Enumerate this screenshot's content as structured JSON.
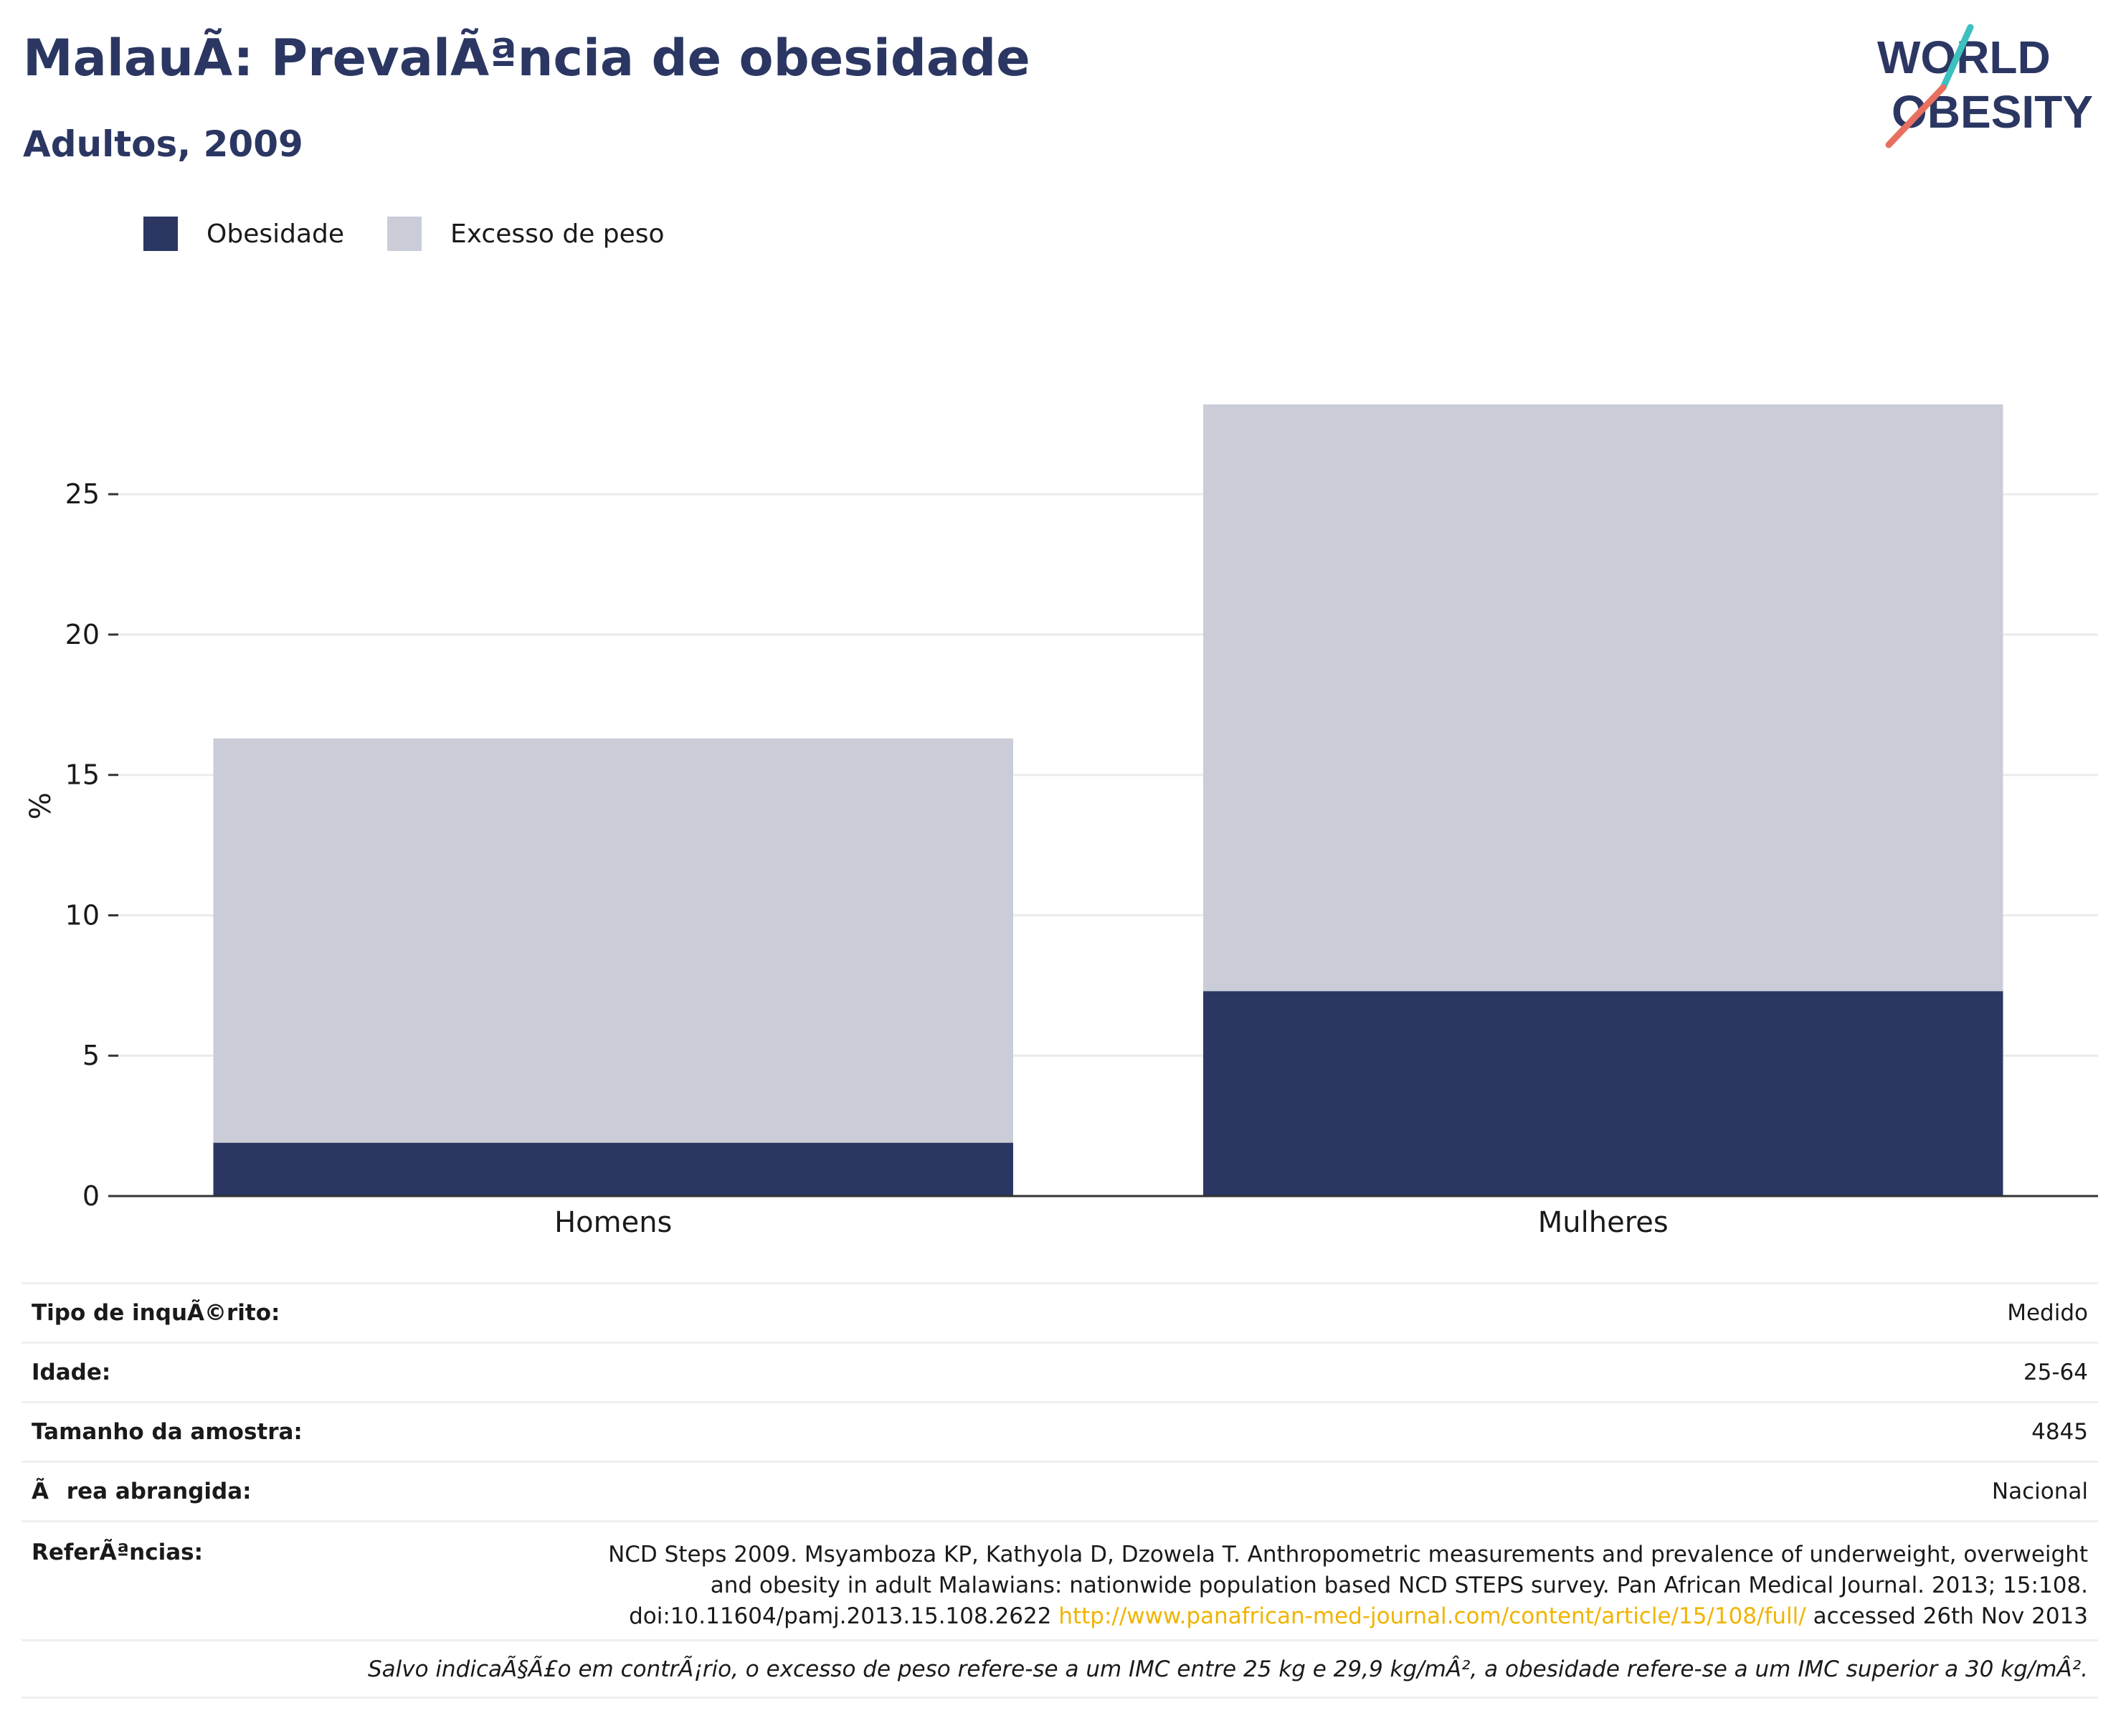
{
  "header": {
    "title": "MalauÃ: PrevalÃªncia de obesidade",
    "subtitle": "Adultos, 2009"
  },
  "logo": {
    "line1": "WORLD",
    "line2": "OBESITY",
    "text_color": "#2b3762",
    "slash_color_top": "#3cc0c0",
    "slash_color_bottom": "#e8705f"
  },
  "colors": {
    "obesity": "#2b3762",
    "overweight": "#cacdd8",
    "grid": "#ebebeb",
    "axis": "#333333",
    "link": "#f0b400"
  },
  "chart_data": {
    "type": "bar",
    "stacked": true,
    "categories": [
      "Homens",
      "Mulheres"
    ],
    "series": [
      {
        "name": "Obesidade",
        "values": [
          1.9,
          7.3
        ]
      },
      {
        "name": "Excesso de peso",
        "values": [
          14.4,
          20.9
        ]
      }
    ],
    "title": "MalauÃ: PrevalÃªncia de obesidade",
    "subtitle": "Adultos, 2009",
    "xlabel": "",
    "ylabel": "%",
    "ylim": [
      0,
      28.3
    ],
    "yticks": [
      0,
      5,
      10,
      15,
      20,
      25
    ],
    "legend_position": "top-left",
    "grid": true
  },
  "info_table": {
    "rows": [
      {
        "key": "Tipo de inquÃ©rito:",
        "value": "Medido"
      },
      {
        "key": "Idade:",
        "value": "25-64"
      },
      {
        "key": "Tamanho da amostra:",
        "value": "4845"
      },
      {
        "key": "Ãrea abrangida:",
        "value": "Nacional"
      }
    ],
    "references": {
      "key": "ReferÃªncias:",
      "line1": "NCD Steps 2009. Msyamboza KP, Kathyola D, Dzowela T. Anthropometric measurements and prevalence of underweight, overweight",
      "line2": "and obesity in adult Malawians: nationwide population based NCD STEPS survey. Pan African Medical Journal. 2013; 15:108.",
      "line3_prefix": "doi:10.11604/pamj.2013.15.108.2622",
      "link": "http://www.panafrican-med-journal.com/content/article/15/108/full/",
      "line3_suffix": "accessed 26th Nov 2013"
    },
    "note": "Salvo indicaÃ§Ã£o em contrÃ¡rio, o excesso de peso refere-se a um IMC entre 25 kg e 29,9 kg/mÂ², a obesidade refere-se a um IMC superior a 30 kg/mÂ²."
  }
}
